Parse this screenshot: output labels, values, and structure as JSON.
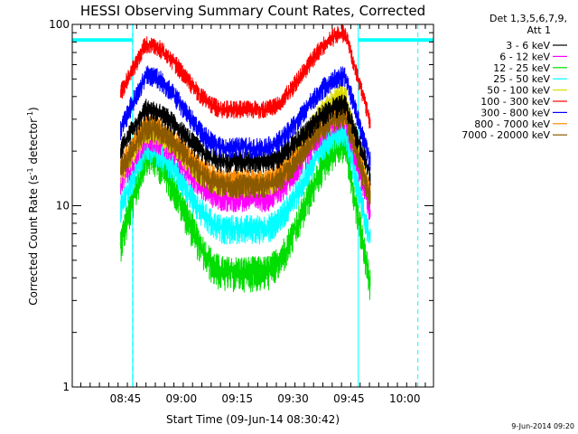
{
  "chart_data": {
    "type": "line",
    "title": "HESSI Observing Summary Count Rates, Corrected",
    "xlabel": "Start Time (09-Jun-14 08:30:42)",
    "ylabel_main": "Corrected Count Rate (s",
    "ylabel_sup1": "-1",
    "ylabel_mid": " detector",
    "ylabel_sup2": "-1",
    "ylabel_end": ")",
    "xlim_minutes": [
      0,
      97
    ],
    "ylim": [
      1,
      100
    ],
    "yscale": "log",
    "x_ticks": [
      {
        "label": "08:45",
        "minutes": 14.3
      },
      {
        "label": "09:00",
        "minutes": 29.3
      },
      {
        "label": "09:15",
        "minutes": 44.3
      },
      {
        "label": "09:30",
        "minutes": 59.3
      },
      {
        "label": "09:45",
        "minutes": 74.3
      },
      {
        "label": "10:00",
        "minutes": 89.3
      }
    ],
    "y_ticks": [
      {
        "label": "1",
        "value": 1
      },
      {
        "label": "10",
        "value": 10
      },
      {
        "label": "100",
        "value": 100
      }
    ],
    "legend_header": [
      "Det 1,3,5,6,7,9,",
      "Att 1"
    ],
    "legend_position": "top-right",
    "data_start_minutes": 13,
    "data_end_minutes": 80,
    "night_end_minutes": 16.5,
    "night_start_minutes": 76.5,
    "background_blocks_minutes": [
      [
        0,
        16.2
      ],
      [
        76.8,
        97
      ]
    ],
    "attenuator_marks_minutes": [
      16.2,
      76.8
    ],
    "saa_dashed_minutes": [
      16.3,
      92.8
    ],
    "series": [
      {
        "name": "3 - 6 keV",
        "color": "#000000",
        "min": 17.5,
        "peak1": 34,
        "peak2": 36
      },
      {
        "name": "6 - 12 keV",
        "color": "#ff00ff",
        "min": 11,
        "peak1": 24,
        "peak2": 31
      },
      {
        "name": "12 - 25 keV",
        "color": "#00dd00",
        "min": 4.3,
        "peak1": 19,
        "peak2": 22
      },
      {
        "name": "25 - 50 keV",
        "color": "#00ffff",
        "min": 7.5,
        "peak1": 21,
        "peak2": 26
      },
      {
        "name": "50 - 100 keV",
        "color": "#dddd00",
        "min": 13,
        "peak1": 26,
        "peak2": 41
      },
      {
        "name": "100 - 300 keV",
        "color": "#ff0000",
        "min": 34,
        "peak1": 78,
        "peak2": 90
      },
      {
        "name": "300 - 800 keV",
        "color": "#0000ff",
        "min": 21,
        "peak1": 53,
        "peak2": 52
      },
      {
        "name": "800 - 7000 keV",
        "color": "#ff8c00",
        "min": 14,
        "peak1": 28,
        "peak2": 33
      },
      {
        "name": "7000 - 20000 keV",
        "color": "#8b5a00",
        "min": 13,
        "peak1": 27,
        "peak2": 31
      }
    ]
  },
  "timestamp": "9-Jun-2014 09:20"
}
